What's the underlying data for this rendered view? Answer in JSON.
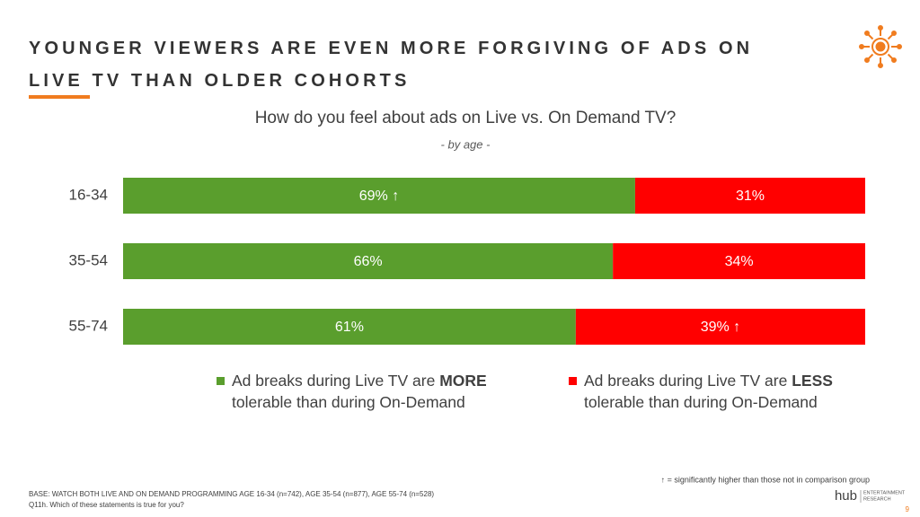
{
  "chart_data": {
    "type": "stacked-bar-horizontal",
    "title": "YOUNGER VIEWERS ARE EVEN MORE FORGIVING OF ADS ON LIVE TV THAN OLDER COHORTS",
    "subtitle": "How do you feel about ads on Live vs. On Demand TV?",
    "subsubtitle": "- by age -",
    "categories": [
      "16-34",
      "35-54",
      "55-74"
    ],
    "xlim": [
      0,
      100
    ],
    "series": [
      {
        "name": "Ad breaks during Live TV are MORE tolerable than during On-Demand",
        "color": "#5a9e2d",
        "values": [
          69,
          66,
          61
        ],
        "value_labels": [
          "69% ↑",
          "66%",
          "61%"
        ]
      },
      {
        "name": "Ad breaks during Live TV are LESS tolerable than during On-Demand",
        "color": "#ff0000",
        "values": [
          31,
          34,
          39
        ],
        "value_labels": [
          "31%",
          "34%",
          "39% ↑"
        ]
      }
    ],
    "footnote": "↑ = significantly higher than those not in comparison group",
    "base": [
      "BASE: WATCH BOTH LIVE AND ON DEMAND PROGRAMMING  AGE 16-34 (n=742), AGE 35-54 (n=877), AGE 55-74 (n=528)",
      "Q11h. Which of these statements is true for you?"
    ],
    "logo": {
      "name": "hub",
      "tagline": [
        "ENTERTAINMENT",
        "RESEARCH"
      ]
    },
    "page_number": "9"
  }
}
